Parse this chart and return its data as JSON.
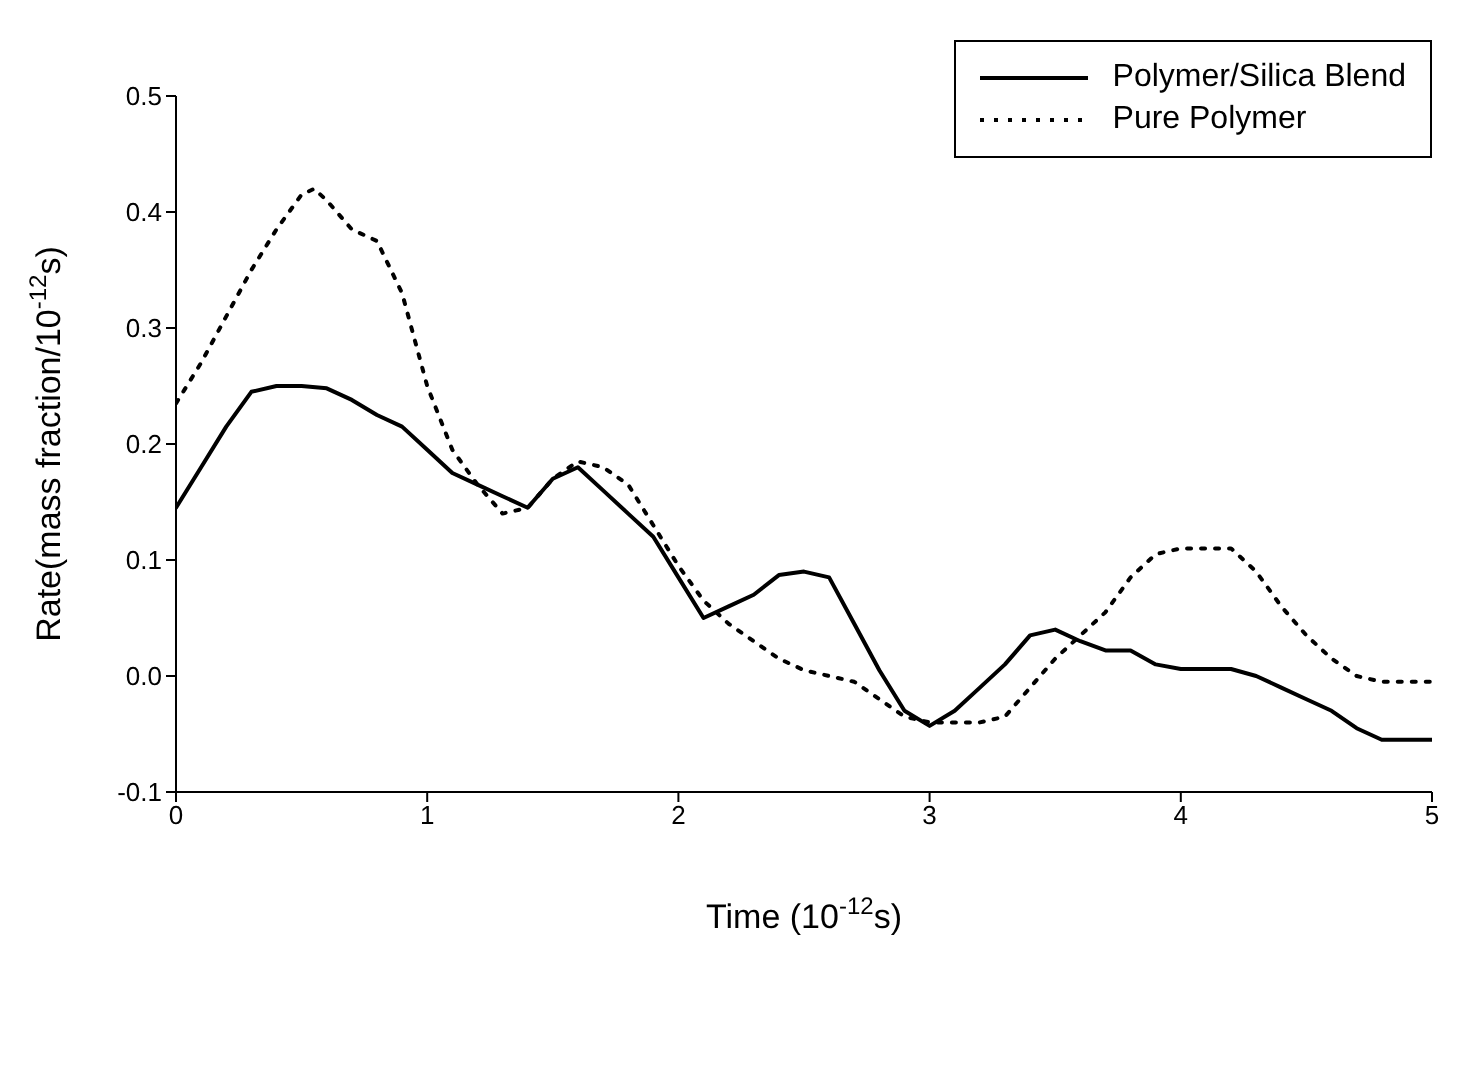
{
  "chart_data": {
    "type": "line",
    "xlabel": "Time (10$^{-12}$s)",
    "ylabel": "Rate(mass fraction/10$^{-12}$s)",
    "xlim": [
      0,
      5
    ],
    "xticks": [
      0,
      1,
      2,
      3,
      4,
      5
    ],
    "ylim": [
      -0.1,
      0.5
    ],
    "yticks": [
      {
        "value": -0.1,
        "label": "-0.1"
      },
      {
        "value": 0,
        "label": "0.0"
      },
      {
        "value": 0.1,
        "label": "0.1"
      },
      {
        "value": 0.2,
        "label": "0.2"
      },
      {
        "value": 0.3,
        "label": "0.3"
      },
      {
        "value": 0.4,
        "label": "0.4"
      },
      {
        "value": 0.5,
        "label": "0.5"
      }
    ],
    "grid": false,
    "legend": "top right",
    "marker": "none",
    "series": [
      {
        "name": "Polymer/Silica Blend",
        "color": "#000000",
        "line_style": "solid",
        "x": [
          0,
          0.1,
          0.2,
          0.3,
          0.4,
          0.5,
          0.6,
          0.7,
          0.8,
          0.9,
          1.0,
          1.1,
          1.2,
          1.3,
          1.4,
          1.5,
          1.6,
          1.7,
          1.8,
          1.9,
          2.0,
          2.1,
          2.2,
          2.3,
          2.4,
          2.5,
          2.6,
          2.7,
          2.8,
          2.9,
          3.0,
          3.1,
          3.2,
          3.3,
          3.4,
          3.5,
          3.6,
          3.7,
          3.8,
          3.9,
          4.0,
          4.1,
          4.2,
          4.3,
          4.4,
          4.5,
          4.6,
          4.7,
          4.8,
          4.9,
          5.0
        ],
        "values": [
          0.145,
          0.18,
          0.215,
          0.245,
          0.25,
          0.25,
          0.248,
          0.238,
          0.225,
          0.215,
          0.195,
          0.175,
          0.165,
          0.155,
          0.145,
          0.17,
          0.18,
          0.16,
          0.14,
          0.12,
          0.085,
          0.05,
          0.06,
          0.07,
          0.087,
          0.09,
          0.085,
          0.045,
          0.005,
          -0.03,
          -0.043,
          -0.03,
          -0.01,
          0.01,
          0.035,
          0.04,
          0.03,
          0.022,
          0.022,
          0.01,
          0.006,
          0.006,
          0.006,
          0.0,
          -0.01,
          -0.02,
          -0.03,
          -0.045,
          -0.055,
          -0.055,
          -0.055
        ]
      },
      {
        "name": "Pure Polymer",
        "color": "#000000",
        "line_style": "dotted",
        "x": [
          0,
          0.1,
          0.2,
          0.3,
          0.4,
          0.5,
          0.55,
          0.6,
          0.7,
          0.8,
          0.9,
          1.0,
          1.1,
          1.2,
          1.3,
          1.4,
          1.5,
          1.6,
          1.7,
          1.8,
          1.9,
          2.0,
          2.1,
          2.2,
          2.3,
          2.4,
          2.5,
          2.6,
          2.7,
          2.8,
          2.9,
          3.0,
          3.1,
          3.2,
          3.3,
          3.4,
          3.5,
          3.6,
          3.7,
          3.8,
          3.9,
          4.0,
          4.1,
          4.2,
          4.3,
          4.4,
          4.5,
          4.6,
          4.7,
          4.8,
          4.9,
          5.0
        ],
        "values": [
          0.235,
          0.27,
          0.31,
          0.35,
          0.385,
          0.415,
          0.42,
          0.41,
          0.385,
          0.375,
          0.33,
          0.25,
          0.195,
          0.165,
          0.14,
          0.145,
          0.17,
          0.185,
          0.18,
          0.165,
          0.13,
          0.095,
          0.065,
          0.045,
          0.03,
          0.015,
          0.005,
          0.0,
          -0.005,
          -0.02,
          -0.035,
          -0.04,
          -0.04,
          -0.04,
          -0.035,
          -0.01,
          0.015,
          0.035,
          0.055,
          0.085,
          0.105,
          0.11,
          0.11,
          0.11,
          0.09,
          0.06,
          0.035,
          0.015,
          0.0,
          -0.005,
          -0.005,
          -0.005
        ]
      }
    ]
  }
}
